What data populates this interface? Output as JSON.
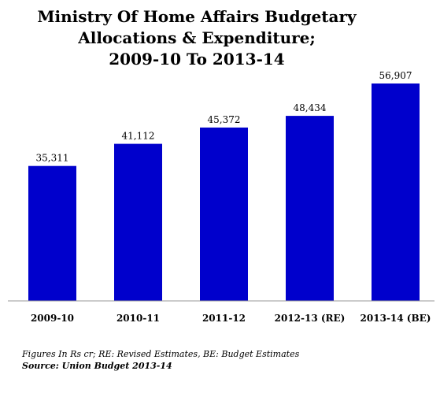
{
  "chart_data": {
    "type": "bar",
    "title_lines": [
      "Ministry Of Home Affairs Budgetary",
      "Allocations & Expenditure;",
      "2009-10 To 2013-14"
    ],
    "categories": [
      "2009-10",
      "2010-11",
      "2011-12",
      "2012-13 (RE)",
      "2013-14 (BE)"
    ],
    "values": [
      35311,
      41112,
      45372,
      48434,
      56907
    ],
    "value_labels": [
      "35,311",
      "41,112",
      "45,372",
      "48,434",
      "56,907"
    ],
    "xlabel": "",
    "ylabel": "",
    "ylim": [
      0,
      60000
    ],
    "grid": false,
    "legend": false,
    "bar_color": "#0000CC",
    "notes": [
      "Figures In Rs cr; RE: Revised Estimates, BE: Budget Estimates",
      "Source: Union Budget 2013-14"
    ]
  }
}
